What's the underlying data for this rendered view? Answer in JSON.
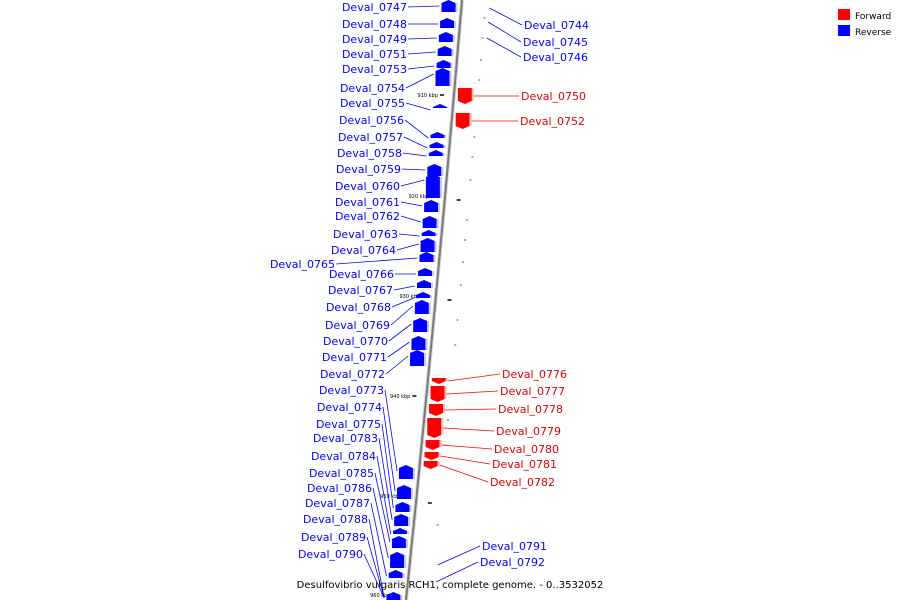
{
  "caption": "Desulfovibrio vulgaris RCH1, complete genome. - 0..3532052",
  "legend": {
    "forward": {
      "label": "Forward",
      "color": "#ff0000"
    },
    "reverse": {
      "label": "Reverse",
      "color": "#0000ff"
    }
  },
  "ticks": [
    "910 kbp",
    "920 kbp",
    "930 kbp",
    "940 kbp",
    "950 kbp",
    "960 kbp"
  ],
  "reverse_genes": [
    "Deval_0747",
    "Deval_0748",
    "Deval_0749",
    "Deval_0751",
    "Deval_0753",
    "Deval_0754",
    "Deval_0755",
    "Deval_0756",
    "Deval_0757",
    "Deval_0758",
    "Deval_0759",
    "Deval_0760",
    "Deval_0761",
    "Deval_0762",
    "Deval_0763",
    "Deval_0764",
    "Deval_0765",
    "Deval_0766",
    "Deval_0767",
    "Deval_0768",
    "Deval_0769",
    "Deval_0770",
    "Deval_0771",
    "Deval_0772",
    "Deval_0773",
    "Deval_0774",
    "Deval_0775",
    "Deval_0783",
    "Deval_0784",
    "Deval_0785",
    "Deval_0786",
    "Deval_0787",
    "Deval_0788",
    "Deval_0789",
    "Deval_0790"
  ],
  "right_blue_genes": [
    "Deval_0744",
    "Deval_0745",
    "Deval_0746",
    "Deval_0791",
    "Deval_0792"
  ],
  "forward_genes": [
    "Deval_0750",
    "Deval_0752",
    "Deval_0776",
    "Deval_0777",
    "Deval_0778",
    "Deval_0779",
    "Deval_0780",
    "Deval_0781",
    "Deval_0782"
  ]
}
